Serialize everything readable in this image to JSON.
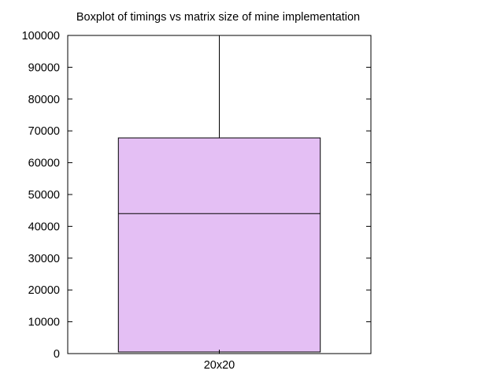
{
  "chart_data": {
    "type": "boxplot",
    "title": "Boxplot of timings vs matrix size of mine implementation",
    "xlabel": "",
    "ylabel": "",
    "ylim": [
      0,
      100000
    ],
    "yticks": [
      0,
      10000,
      20000,
      30000,
      40000,
      50000,
      60000,
      70000,
      80000,
      90000,
      100000
    ],
    "ytick_labels": [
      "0",
      "10000",
      "20000",
      "30000",
      "40000",
      "50000",
      "60000",
      "70000",
      "80000",
      "90000",
      "100000"
    ],
    "categories": [
      "20x20"
    ],
    "boxes": [
      {
        "category": "20x20",
        "min": 500,
        "q1": 500,
        "median": 44000,
        "q3": 67800,
        "max": 100000
      }
    ],
    "grid": false,
    "legend": "none",
    "colors": {
      "box_fill": "#e4bff4",
      "stroke": "#000000"
    }
  }
}
